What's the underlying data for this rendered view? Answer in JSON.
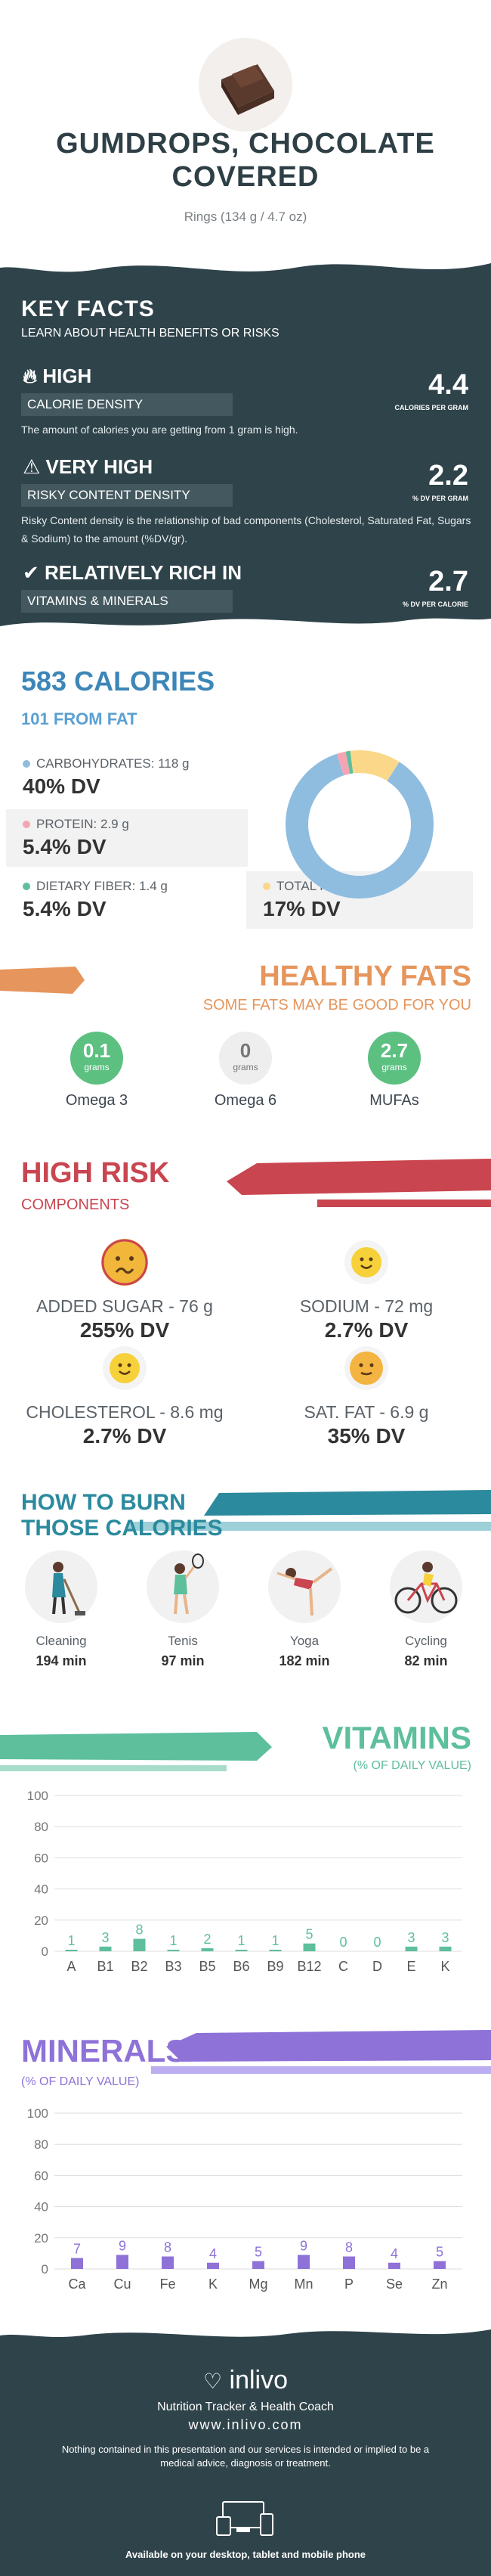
{
  "header": {
    "title": "GUMDROPS, CHOCOLATE COVERED",
    "serving": "Rings (134 g / 4.7 oz)"
  },
  "key_facts": {
    "heading": "KEY FACTS",
    "subheading": "LEARN ABOUT HEALTH BENEFITS OR RISKS",
    "items": [
      {
        "icon": "flame-icon",
        "title": "HIGH",
        "label": "CALORIE DENSITY",
        "value": "4.4",
        "unit": "CALORIES PER GRAM",
        "description": "The amount of calories you are getting from 1 gram is high."
      },
      {
        "icon": "warning-icon",
        "title": "VERY HIGH",
        "label": "RISKY CONTENT DENSITY",
        "value": "2.2",
        "unit": "% DV PER GRAM",
        "description": "Risky Content density is the relationship of bad components (Cholesterol, Saturated Fat, Sugars & Sodium) to the amount (%DV/gr)."
      },
      {
        "icon": "check-icon",
        "title": "RELATIVELY RICH  IN",
        "label": "VITAMINS & MINERALS",
        "value": "2.7",
        "unit": "% DV PER CALORIE",
        "description": ""
      }
    ]
  },
  "calories": {
    "title": "583 CALORIES",
    "from_fat": "101 FROM FAT",
    "nutrients": [
      {
        "label": "CARBOHYDRATES: 118 g",
        "dv": "40% DV",
        "color": "#8fbde0"
      },
      {
        "label": "PROTEIN: 2.9 g",
        "dv": "5.4% DV",
        "color": "#f4a5b3"
      },
      {
        "label": "DIETARY FIBER: 1.4 g",
        "dv": "5.4% DV",
        "color": "#5dbf9c"
      },
      {
        "label": "TOTAL FAT: 11 g",
        "dv": "17% DV",
        "color": "#fbd889"
      }
    ],
    "donut_fractions": [
      0.86,
      0.02,
      0.01,
      0.11
    ]
  },
  "healthy_fats": {
    "title": "HEALTHY FATS",
    "subtitle": "SOME FATS MAY BE GOOD FOR YOU",
    "unit": "grams",
    "items": [
      {
        "value": "0.1",
        "name": "Omega 3",
        "color": "#5cc081"
      },
      {
        "value": "0",
        "name": "Omega 6",
        "color": "#eeeeee"
      },
      {
        "value": "2.7",
        "name": "MUFAs",
        "color": "#5cc081"
      }
    ]
  },
  "high_risk": {
    "title": "HIGH RISK",
    "subtitle": "COMPONENTS",
    "items": [
      {
        "name": "ADDED SUGAR - 76 g",
        "dv": "255% DV",
        "mood": "angry"
      },
      {
        "name": "SODIUM - 72 mg",
        "dv": "2.7% DV",
        "mood": "happy"
      },
      {
        "name": "CHOLESTEROL - 8.6 mg",
        "dv": "2.7% DV",
        "mood": "happy"
      },
      {
        "name": "SAT. FAT - 6.9 g",
        "dv": "35% DV",
        "mood": "neutral"
      }
    ]
  },
  "burn": {
    "title_line1": "HOW TO BURN",
    "title_line2": "THOSE CALORIES",
    "activities": [
      {
        "name": "Cleaning",
        "minutes": "194 min",
        "icon": "cleaning-icon"
      },
      {
        "name": "Tenis",
        "minutes": "97 min",
        "icon": "tennis-icon"
      },
      {
        "name": "Yoga",
        "minutes": "182 min",
        "icon": "yoga-icon"
      },
      {
        "name": "Cycling",
        "minutes": "82 min",
        "icon": "cycling-icon"
      }
    ]
  },
  "chart_data": [
    {
      "type": "bar",
      "title": "VITAMINS",
      "subtitle": "(% OF DAILY VALUE)",
      "categories": [
        "A",
        "B1",
        "B2",
        "B3",
        "B5",
        "B6",
        "B9",
        "B12",
        "C",
        "D",
        "E",
        "K"
      ],
      "values": [
        1,
        3,
        8,
        1,
        2,
        1,
        1,
        5,
        0,
        0,
        3,
        3
      ],
      "value_labels": [
        "1",
        "3",
        "8",
        "1",
        "2",
        "1",
        "1",
        "5",
        "0",
        "0",
        "3",
        "3"
      ],
      "ylim": [
        0,
        100
      ],
      "yticks": [
        0,
        20,
        40,
        60,
        80,
        100
      ],
      "color": "#5dbf9c",
      "grid": true
    },
    {
      "type": "bar",
      "title": "MINERALS",
      "subtitle": "(% OF DAILY VALUE)",
      "categories": [
        "Ca",
        "Cu",
        "Fe",
        "K",
        "Mg",
        "Mn",
        "P",
        "Se",
        "Zn"
      ],
      "values": [
        7,
        9,
        8,
        4,
        5,
        9,
        8,
        4,
        5
      ],
      "value_labels": [
        "7",
        "9",
        "8",
        "4",
        "5",
        "9",
        "8",
        "4",
        "5"
      ],
      "ylim": [
        0,
        100
      ],
      "yticks": [
        0,
        20,
        40,
        60,
        80,
        100
      ],
      "color": "#8e72d8",
      "grid": true
    }
  ],
  "footer": {
    "brand": "inlivo",
    "tagline": "Nutrition Tracker & Health Coach",
    "site": "www.inlivo.com",
    "disclaimer": "Nothing contained in this presentation and our services is intended or implied to be a medical advice, diagnosis or treatment.",
    "available": "Available on your desktop, tablet and mobile phone"
  }
}
